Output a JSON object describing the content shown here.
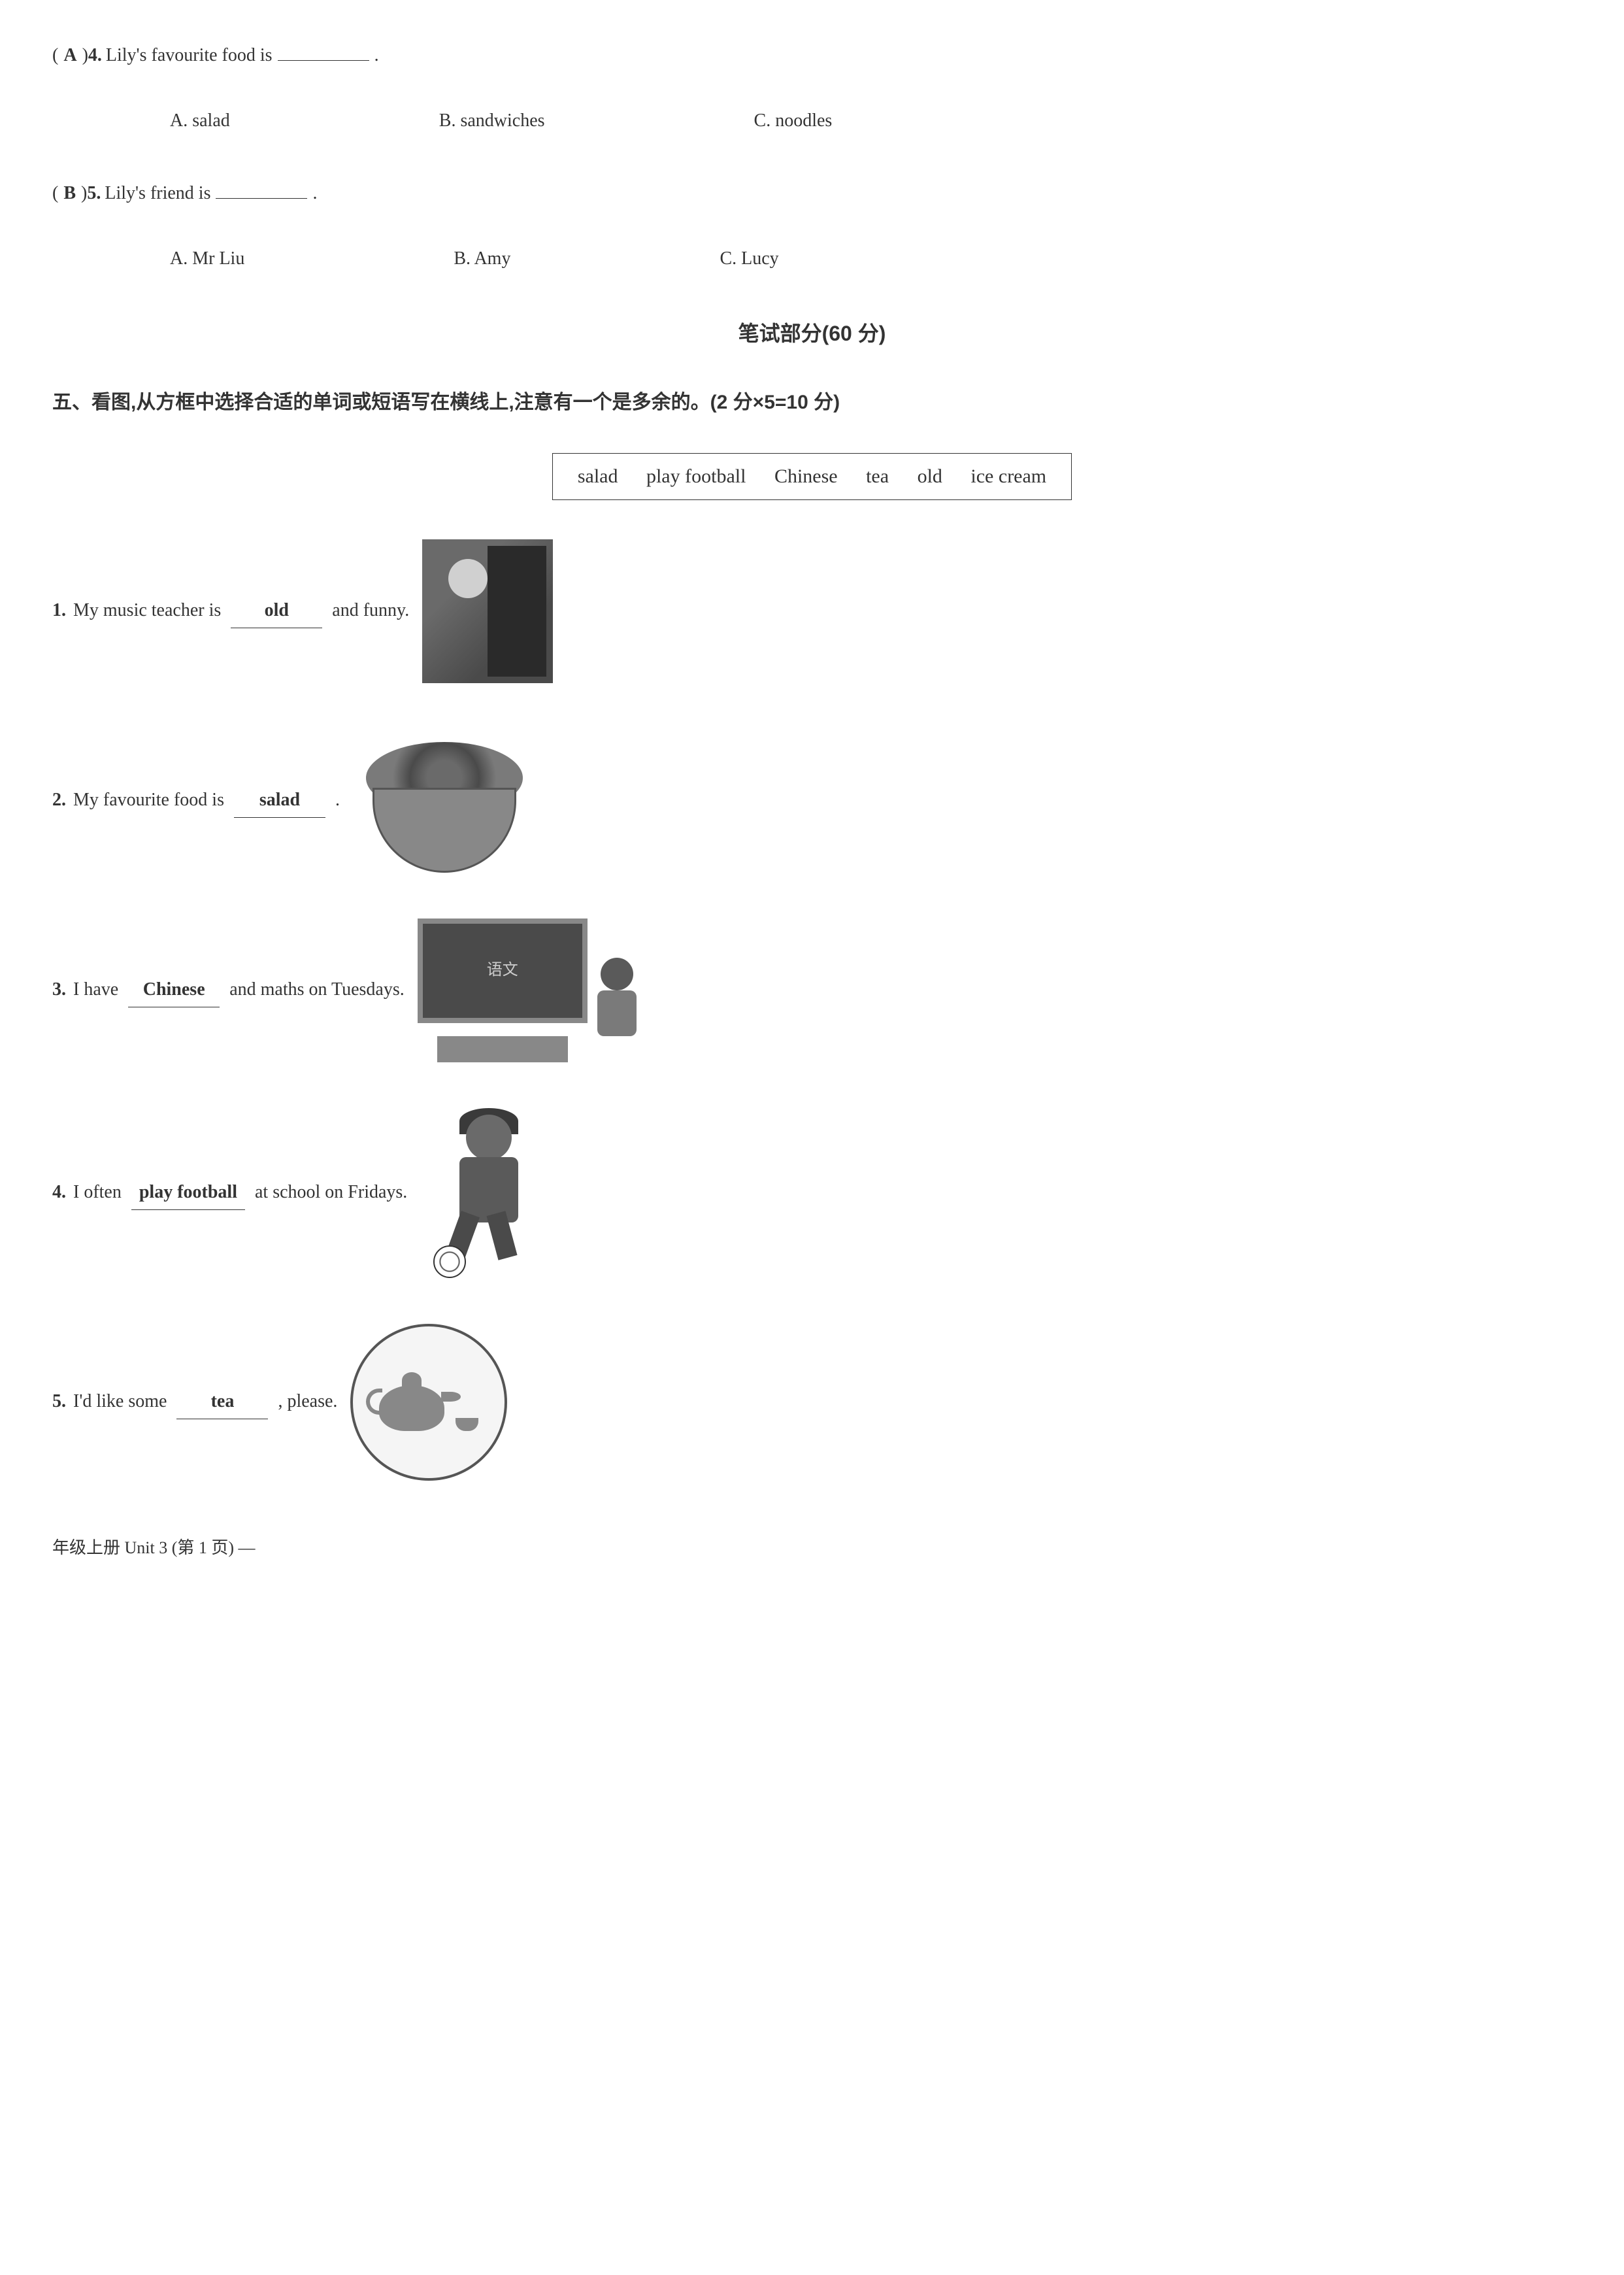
{
  "q4": {
    "prefix": "(",
    "answer": "A",
    "suffix": ")",
    "number": "4.",
    "text_before": "Lily's favourite food is",
    "text_after": ".",
    "options": {
      "a": "A. salad",
      "b": "B. sandwiches",
      "c": "C. noodles"
    }
  },
  "q5": {
    "prefix": "(",
    "answer": "B",
    "suffix": ")",
    "number": "5.",
    "text_before": "Lily's friend is",
    "text_after": ".",
    "options": {
      "a": "A. Mr Liu",
      "b": "B. Amy",
      "c": "C. Lucy"
    }
  },
  "written_section": "笔试部分(60 分)",
  "section5_title": "五、看图,从方框中选择合适的单词或短语写在横线上,注意有一个是多余的。(2 分×5=10 分)",
  "word_box": {
    "w1": "salad",
    "w2": "play football",
    "w3": "Chinese",
    "w4": "tea",
    "w5": "old",
    "w6": "ice cream"
  },
  "pq1": {
    "number": "1.",
    "before": "My music teacher is",
    "answer": "old",
    "after": "and funny."
  },
  "pq2": {
    "number": "2.",
    "before": "My favourite food is",
    "answer": "salad",
    "after": "."
  },
  "pq3": {
    "number": "3.",
    "before": "I have",
    "answer": "Chinese",
    "after": "and maths on Tuesdays.",
    "blackboard_text": "语文"
  },
  "pq4": {
    "number": "4.",
    "before": "I often",
    "answer": "play football",
    "after": "at school on Fridays."
  },
  "pq5": {
    "number": "5.",
    "before": "I'd like some",
    "answer": "tea",
    "after": ", please."
  },
  "footer": "年级上册 Unit 3 (第 1 页) —"
}
